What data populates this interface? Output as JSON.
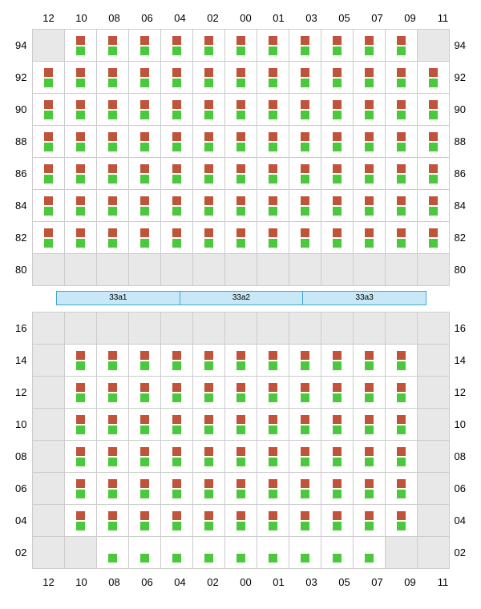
{
  "columns": [
    "12",
    "10",
    "08",
    "06",
    "04",
    "02",
    "00",
    "01",
    "03",
    "05",
    "07",
    "09",
    "11"
  ],
  "top_rows": [
    "94",
    "92",
    "90",
    "88",
    "86",
    "84",
    "82",
    "80"
  ],
  "bottom_rows": [
    "16",
    "14",
    "12",
    "10",
    "08",
    "06",
    "04",
    "02"
  ],
  "top_grid": [
    [
      "empty",
      "full",
      "full",
      "full",
      "full",
      "full",
      "full",
      "full",
      "full",
      "full",
      "full",
      "full",
      "empty"
    ],
    [
      "full",
      "full",
      "full",
      "full",
      "full",
      "full",
      "full",
      "full",
      "full",
      "full",
      "full",
      "full",
      "full"
    ],
    [
      "full",
      "full",
      "full",
      "full",
      "full",
      "full",
      "full",
      "full",
      "full",
      "full",
      "full",
      "full",
      "full"
    ],
    [
      "full",
      "full",
      "full",
      "full",
      "full",
      "full",
      "full",
      "full",
      "full",
      "full",
      "full",
      "full",
      "full"
    ],
    [
      "full",
      "full",
      "full",
      "full",
      "full",
      "full",
      "full",
      "full",
      "full",
      "full",
      "full",
      "full",
      "full"
    ],
    [
      "full",
      "full",
      "full",
      "full",
      "full",
      "full",
      "full",
      "full",
      "full",
      "full",
      "full",
      "full",
      "full"
    ],
    [
      "full",
      "full",
      "full",
      "full",
      "full",
      "full",
      "full",
      "full",
      "full",
      "full",
      "full",
      "full",
      "full"
    ],
    [
      "empty",
      "empty",
      "empty",
      "empty",
      "empty",
      "empty",
      "empty",
      "empty",
      "empty",
      "empty",
      "empty",
      "empty",
      "empty"
    ]
  ],
  "bottom_grid": [
    [
      "empty",
      "empty",
      "empty",
      "empty",
      "empty",
      "empty",
      "empty",
      "empty",
      "empty",
      "empty",
      "empty",
      "empty",
      "empty"
    ],
    [
      "empty",
      "full",
      "full",
      "full",
      "full",
      "full",
      "full",
      "full",
      "full",
      "full",
      "full",
      "full",
      "empty"
    ],
    [
      "empty",
      "full",
      "full",
      "full",
      "full",
      "full",
      "full",
      "full",
      "full",
      "full",
      "full",
      "full",
      "empty"
    ],
    [
      "empty",
      "full",
      "full",
      "full",
      "full",
      "full",
      "full",
      "full",
      "full",
      "full",
      "full",
      "full",
      "empty"
    ],
    [
      "empty",
      "full",
      "full",
      "full",
      "full",
      "full",
      "full",
      "full",
      "full",
      "full",
      "full",
      "full",
      "empty"
    ],
    [
      "empty",
      "full",
      "full",
      "full",
      "full",
      "full",
      "full",
      "full",
      "full",
      "full",
      "full",
      "full",
      "empty"
    ],
    [
      "empty",
      "full",
      "full",
      "full",
      "full",
      "full",
      "full",
      "full",
      "full",
      "full",
      "full",
      "full",
      "empty"
    ],
    [
      "empty",
      "empty",
      "green",
      "green",
      "green",
      "green",
      "green",
      "green",
      "green",
      "green",
      "green",
      "empty",
      "empty"
    ]
  ],
  "bar_segments": [
    "33a1",
    "33a2",
    "33a3"
  ],
  "colors": {
    "red": "#c0543a",
    "green": "#4bc83c",
    "empty_bg": "#e8e8e8",
    "bar_fill": "#c9e8f7",
    "bar_border": "#3fa6d6",
    "grid_border": "#cccccc"
  }
}
